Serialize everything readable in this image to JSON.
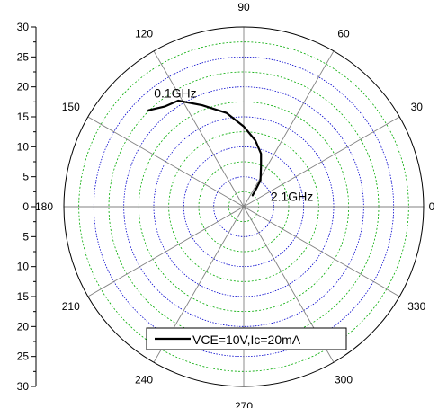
{
  "chart_data": {
    "type": "polar_line",
    "title": "",
    "radial_axis": {
      "range": [
        0,
        30
      ],
      "tick_labels": [
        "30",
        "25",
        "20",
        "15",
        "10",
        "5",
        "0",
        "5",
        "10",
        "15",
        "20",
        "25",
        "30"
      ]
    },
    "angular_axis": {
      "unit": "degrees",
      "tick_labels": [
        "90",
        "60",
        "30",
        "0",
        "330",
        "300",
        "270",
        "240",
        "210",
        "180",
        "150",
        "120"
      ]
    },
    "grid": {
      "radial_circles_color": "#0000cc",
      "radial_minor_color": "#00aa00",
      "spokes_color": "#808080"
    },
    "series": [
      {
        "name": "VCE=10V,Ic=20mA",
        "color": "#000000",
        "points": [
          {
            "angle": 134.6,
            "r": 22.6
          },
          {
            "angle": 128.3,
            "r": 21.3
          },
          {
            "angle": 121.7,
            "r": 20.8
          },
          {
            "angle": 112.3,
            "r": 18.3
          },
          {
            "angle": 100.4,
            "r": 15.9
          },
          {
            "angle": 90.0,
            "r": 13.4
          },
          {
            "angle": 80.0,
            "r": 11.2
          },
          {
            "angle": 72.0,
            "r": 9.3
          },
          {
            "angle": 66.8,
            "r": 7.3
          },
          {
            "angle": 57.5,
            "r": 5.2
          },
          {
            "angle": 55.5,
            "r": 3.8
          },
          {
            "angle": 52.0,
            "r": 2.4
          }
        ]
      }
    ],
    "annotations": [
      {
        "text": "0.1GHz"
      },
      {
        "text": "2.1GHz"
      }
    ]
  }
}
